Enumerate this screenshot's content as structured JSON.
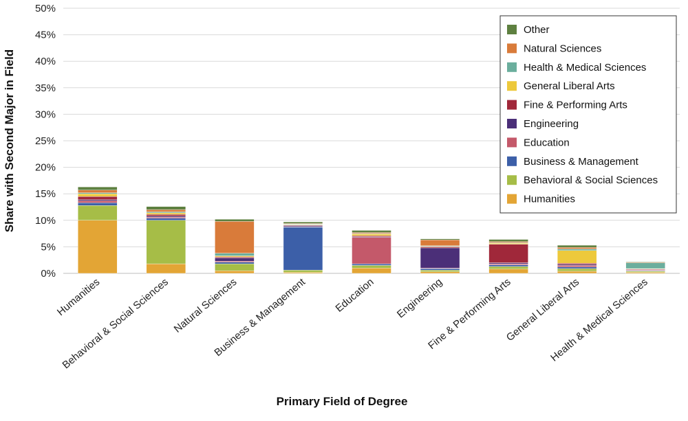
{
  "chart_data": {
    "type": "bar",
    "stacked": true,
    "xlabel": "Primary Field of Degree",
    "ylabel": "Share with Second Major in Field",
    "ylim": [
      0,
      50
    ],
    "yticks": [
      0,
      5,
      10,
      15,
      20,
      25,
      30,
      35,
      40,
      45,
      50
    ],
    "ytick_suffix": "%",
    "grid": true,
    "legend_position": "top-right",
    "categories": [
      "Humanities",
      "Behavioral & Social Sciences",
      "Natural Sciences",
      "Business & Management",
      "Education",
      "Engineering",
      "Fine & Performing Arts",
      "General Liberal Arts",
      "Health & Medical Sciences"
    ],
    "series": [
      {
        "name": "Humanities",
        "color": "#E3A535",
        "values": [
          10.0,
          1.8,
          0.5,
          0.2,
          1.0,
          0.3,
          0.8,
          0.4,
          0.2
        ]
      },
      {
        "name": "Behavioral & Social Sciences",
        "color": "#A6BD47",
        "values": [
          2.8,
          8.2,
          1.3,
          0.4,
          0.5,
          0.3,
          0.5,
          0.5,
          0.2
        ]
      },
      {
        "name": "Business & Management",
        "color": "#3C5FA8",
        "values": [
          0.5,
          0.4,
          0.3,
          8.1,
          0.3,
          0.3,
          0.3,
          0.3,
          0.1
        ]
      },
      {
        "name": "Education",
        "color": "#C4596A",
        "values": [
          0.4,
          0.2,
          0.2,
          0.1,
          5.0,
          0.1,
          0.2,
          0.3,
          0.1
        ]
      },
      {
        "name": "Engineering",
        "color": "#4B2F78",
        "values": [
          0.2,
          0.2,
          0.6,
          0.2,
          0.1,
          3.8,
          0.2,
          0.2,
          0.1
        ]
      },
      {
        "name": "Fine & Performing Arts",
        "color": "#A0283A",
        "values": [
          0.6,
          0.3,
          0.2,
          0.1,
          0.2,
          0.2,
          3.5,
          0.2,
          0.1
        ]
      },
      {
        "name": "General Liberal Arts",
        "color": "#EDC93B",
        "values": [
          0.5,
          0.3,
          0.2,
          0.1,
          0.3,
          0.1,
          0.2,
          2.4,
          0.1
        ]
      },
      {
        "name": "Health & Medical Sciences",
        "color": "#6BAE9D",
        "values": [
          0.2,
          0.2,
          0.5,
          0.1,
          0.1,
          0.1,
          0.1,
          0.3,
          1.1
        ]
      },
      {
        "name": "Natural Sciences",
        "color": "#D97B3A",
        "values": [
          0.5,
          0.4,
          6.0,
          0.1,
          0.2,
          1.1,
          0.2,
          0.3,
          0.1
        ]
      },
      {
        "name": "Other",
        "color": "#5E8040",
        "values": [
          0.6,
          0.6,
          0.4,
          0.3,
          0.4,
          0.2,
          0.4,
          0.4,
          0.1
        ]
      }
    ]
  }
}
